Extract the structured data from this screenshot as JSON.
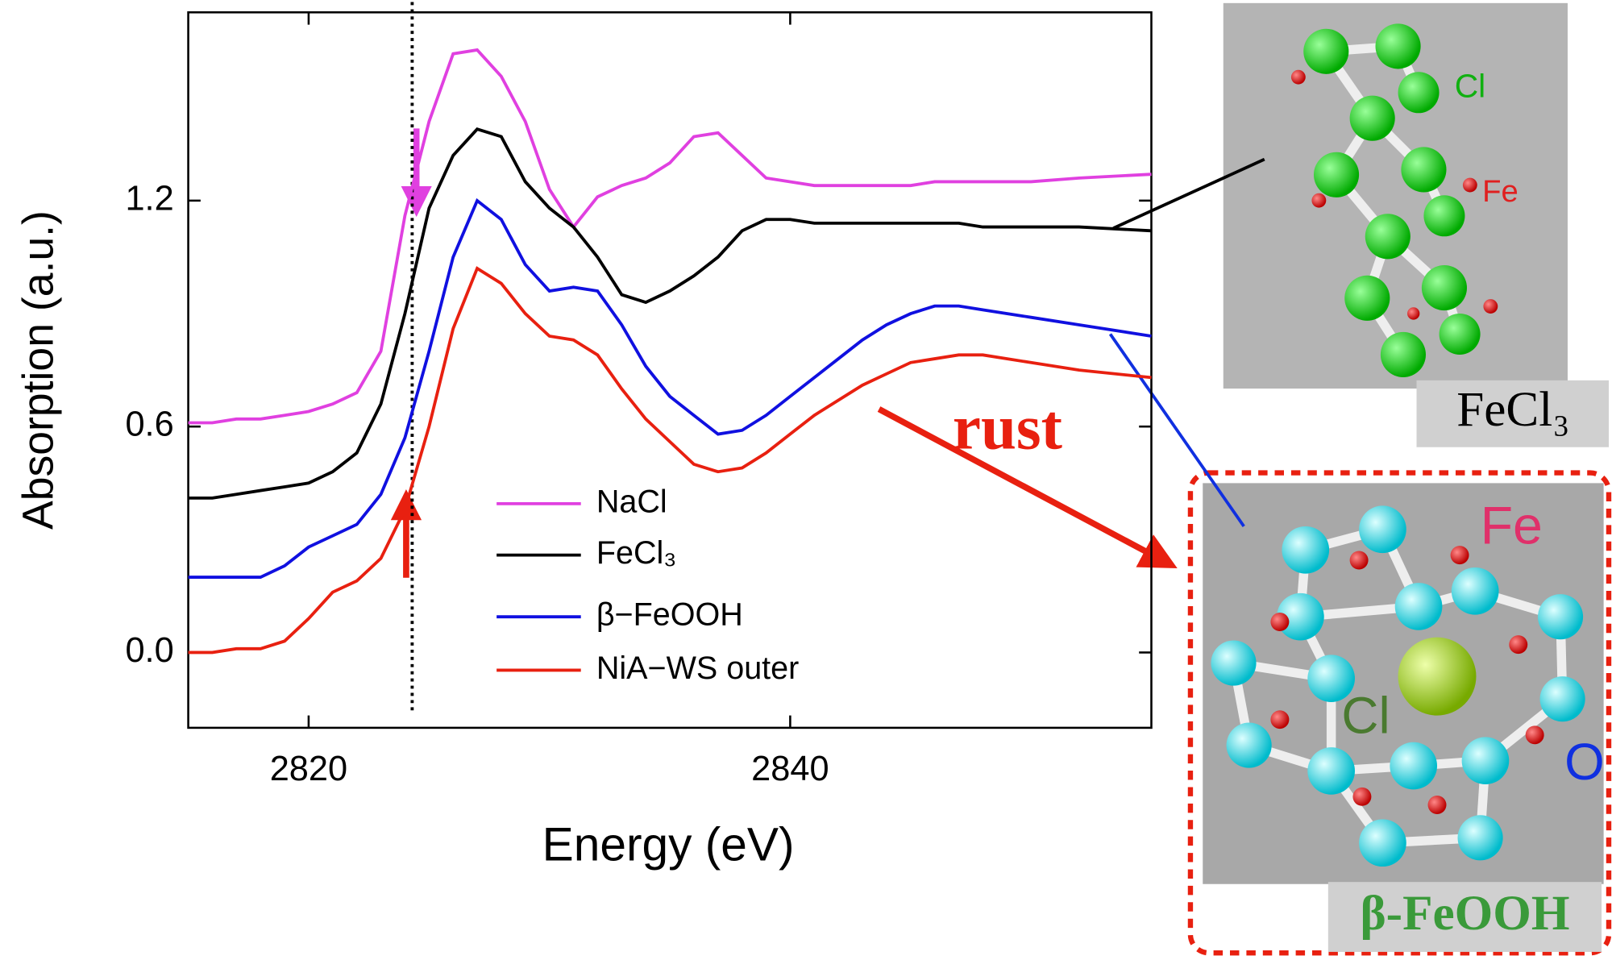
{
  "chart_data": {
    "type": "line",
    "xlabel": "Energy (eV)",
    "ylabel": "Absorption (a.u.)",
    "x": [
      2815,
      2816,
      2817,
      2818,
      2819,
      2820,
      2821,
      2822,
      2823,
      2824,
      2825,
      2826,
      2827,
      2828,
      2829,
      2830,
      2831,
      2832,
      2833,
      2834,
      2835,
      2836,
      2837,
      2838,
      2839,
      2840,
      2841,
      2842,
      2843,
      2844,
      2845,
      2846,
      2847,
      2848,
      2850,
      2852,
      2855
    ],
    "series": [
      {
        "name": "NaCl",
        "color": "#e040e0",
        "values": [
          0.61,
          0.61,
          0.62,
          0.62,
          0.63,
          0.64,
          0.66,
          0.69,
          0.8,
          1.16,
          1.41,
          1.59,
          1.6,
          1.53,
          1.41,
          1.23,
          1.13,
          1.21,
          1.24,
          1.26,
          1.3,
          1.37,
          1.38,
          1.32,
          1.26,
          1.25,
          1.24,
          1.24,
          1.24,
          1.24,
          1.24,
          1.25,
          1.25,
          1.25,
          1.25,
          1.26,
          1.27
        ]
      },
      {
        "name": "FeCl₃",
        "color": "#000000",
        "values": [
          0.41,
          0.41,
          0.42,
          0.43,
          0.44,
          0.45,
          0.48,
          0.53,
          0.66,
          0.9,
          1.18,
          1.32,
          1.39,
          1.37,
          1.25,
          1.18,
          1.13,
          1.05,
          0.95,
          0.93,
          0.96,
          1.0,
          1.05,
          1.12,
          1.15,
          1.15,
          1.14,
          1.14,
          1.14,
          1.14,
          1.14,
          1.14,
          1.14,
          1.13,
          1.13,
          1.13,
          1.12
        ]
      },
      {
        "name": "β−FeOOH",
        "color": "#1010e0",
        "values": [
          0.2,
          0.2,
          0.2,
          0.2,
          0.23,
          0.28,
          0.31,
          0.34,
          0.42,
          0.57,
          0.8,
          1.05,
          1.2,
          1.15,
          1.03,
          0.96,
          0.97,
          0.96,
          0.87,
          0.76,
          0.68,
          0.63,
          0.58,
          0.59,
          0.63,
          0.68,
          0.73,
          0.78,
          0.83,
          0.87,
          0.9,
          0.92,
          0.92,
          0.91,
          0.89,
          0.87,
          0.84
        ]
      },
      {
        "name": "NiA−WS outer",
        "color": "#e82010",
        "values": [
          0.0,
          0.0,
          0.01,
          0.01,
          0.03,
          0.09,
          0.16,
          0.19,
          0.25,
          0.38,
          0.6,
          0.86,
          1.02,
          0.98,
          0.9,
          0.84,
          0.83,
          0.79,
          0.7,
          0.62,
          0.56,
          0.5,
          0.48,
          0.49,
          0.53,
          0.58,
          0.63,
          0.67,
          0.71,
          0.74,
          0.77,
          0.78,
          0.79,
          0.79,
          0.77,
          0.75,
          0.73
        ]
      }
    ],
    "xlim": [
      2815,
      2855
    ],
    "xticks": [
      2820,
      2840
    ],
    "ylim": [
      -0.2,
      1.7
    ],
    "yticks": [
      {
        "value": 0,
        "label": "0.0"
      },
      0.6,
      1.2
    ],
    "reference_x": 2824.3,
    "annotations": {
      "rust": "rust",
      "fecl3_cl": "Cl",
      "fecl3_fe": "Fe",
      "fecl3_caption": "FeCl₃",
      "feooh_fe": "Fe",
      "feooh_cl": "Cl",
      "feooh_o": "O",
      "feooh_caption": "β-FeOOH"
    }
  }
}
